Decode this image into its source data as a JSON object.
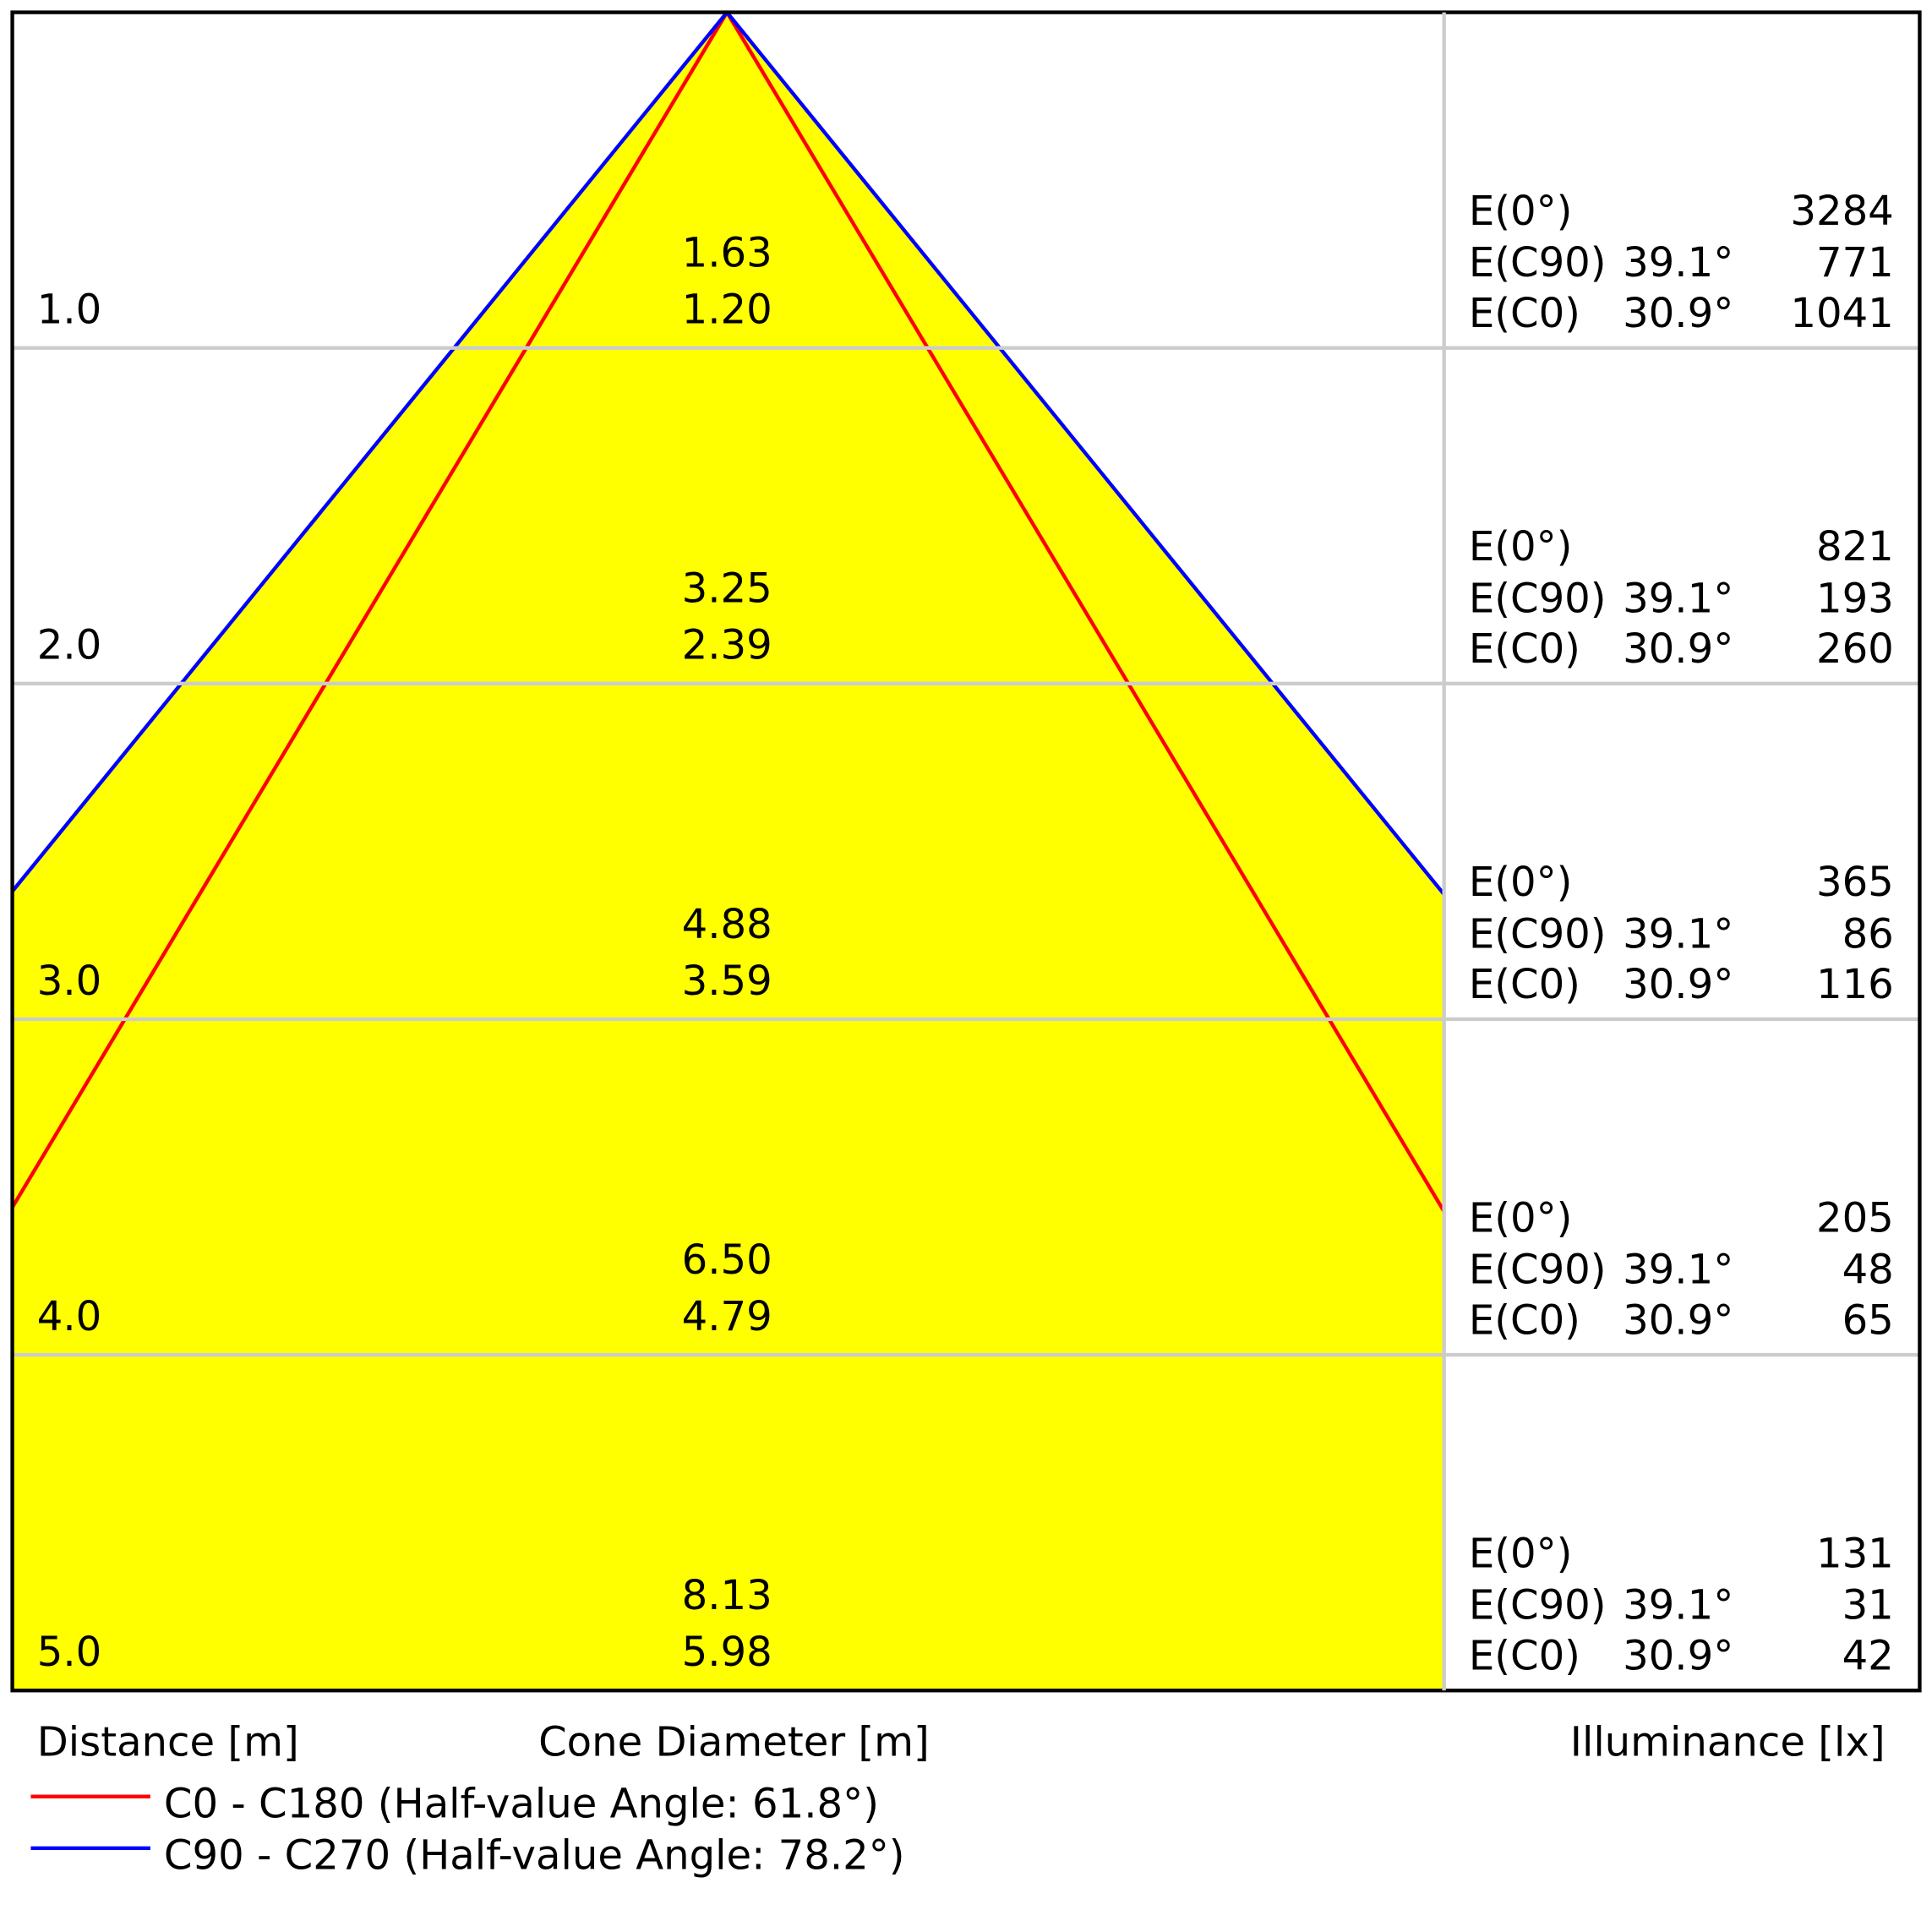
{
  "rows": [
    {
      "distance": "1.0",
      "diameter_c90": "1.63",
      "diameter_c0": "1.20",
      "e0_label": "E(0°)",
      "e0": "3284",
      "ec90_label": "E(C90)",
      "ec90_angle": "39.1°",
      "ec90": "771",
      "ec0_label": "E(C0)",
      "ec0_angle": "30.9°",
      "ec0": "1041"
    },
    {
      "distance": "2.0",
      "diameter_c90": "3.25",
      "diameter_c0": "2.39",
      "e0_label": "E(0°)",
      "e0": "821",
      "ec90_label": "E(C90)",
      "ec90_angle": "39.1°",
      "ec90": "193",
      "ec0_label": "E(C0)",
      "ec0_angle": "30.9°",
      "ec0": "260"
    },
    {
      "distance": "3.0",
      "diameter_c90": "4.88",
      "diameter_c0": "3.59",
      "e0_label": "E(0°)",
      "e0": "365",
      "ec90_label": "E(C90)",
      "ec90_angle": "39.1°",
      "ec90": "86",
      "ec0_label": "E(C0)",
      "ec0_angle": "30.9°",
      "ec0": "116"
    },
    {
      "distance": "4.0",
      "diameter_c90": "6.50",
      "diameter_c0": "4.79",
      "e0_label": "E(0°)",
      "e0": "205",
      "ec90_label": "E(C90)",
      "ec90_angle": "39.1°",
      "ec90": "48",
      "ec0_label": "E(C0)",
      "ec0_angle": "30.9°",
      "ec0": "65"
    },
    {
      "distance": "5.0",
      "diameter_c90": "8.13",
      "diameter_c0": "5.98",
      "e0_label": "E(0°)",
      "e0": "131",
      "ec90_label": "E(C90)",
      "ec90_angle": "39.1°",
      "ec90": "31",
      "ec0_label": "E(C0)",
      "ec0_angle": "30.9°",
      "ec0": "42"
    }
  ],
  "labels": {
    "distance": "Distance [m]",
    "cone": "Cone Diameter [m]",
    "illuminance": "Illuminance [lx]"
  },
  "legend": [
    {
      "label": "C0 - C180 (Half-value Angle: 61.8°)",
      "color": "#ff0000"
    },
    {
      "label": "C90 - C270 (Half-value Angle: 78.2°)",
      "color": "#0000ff"
    }
  ]
}
